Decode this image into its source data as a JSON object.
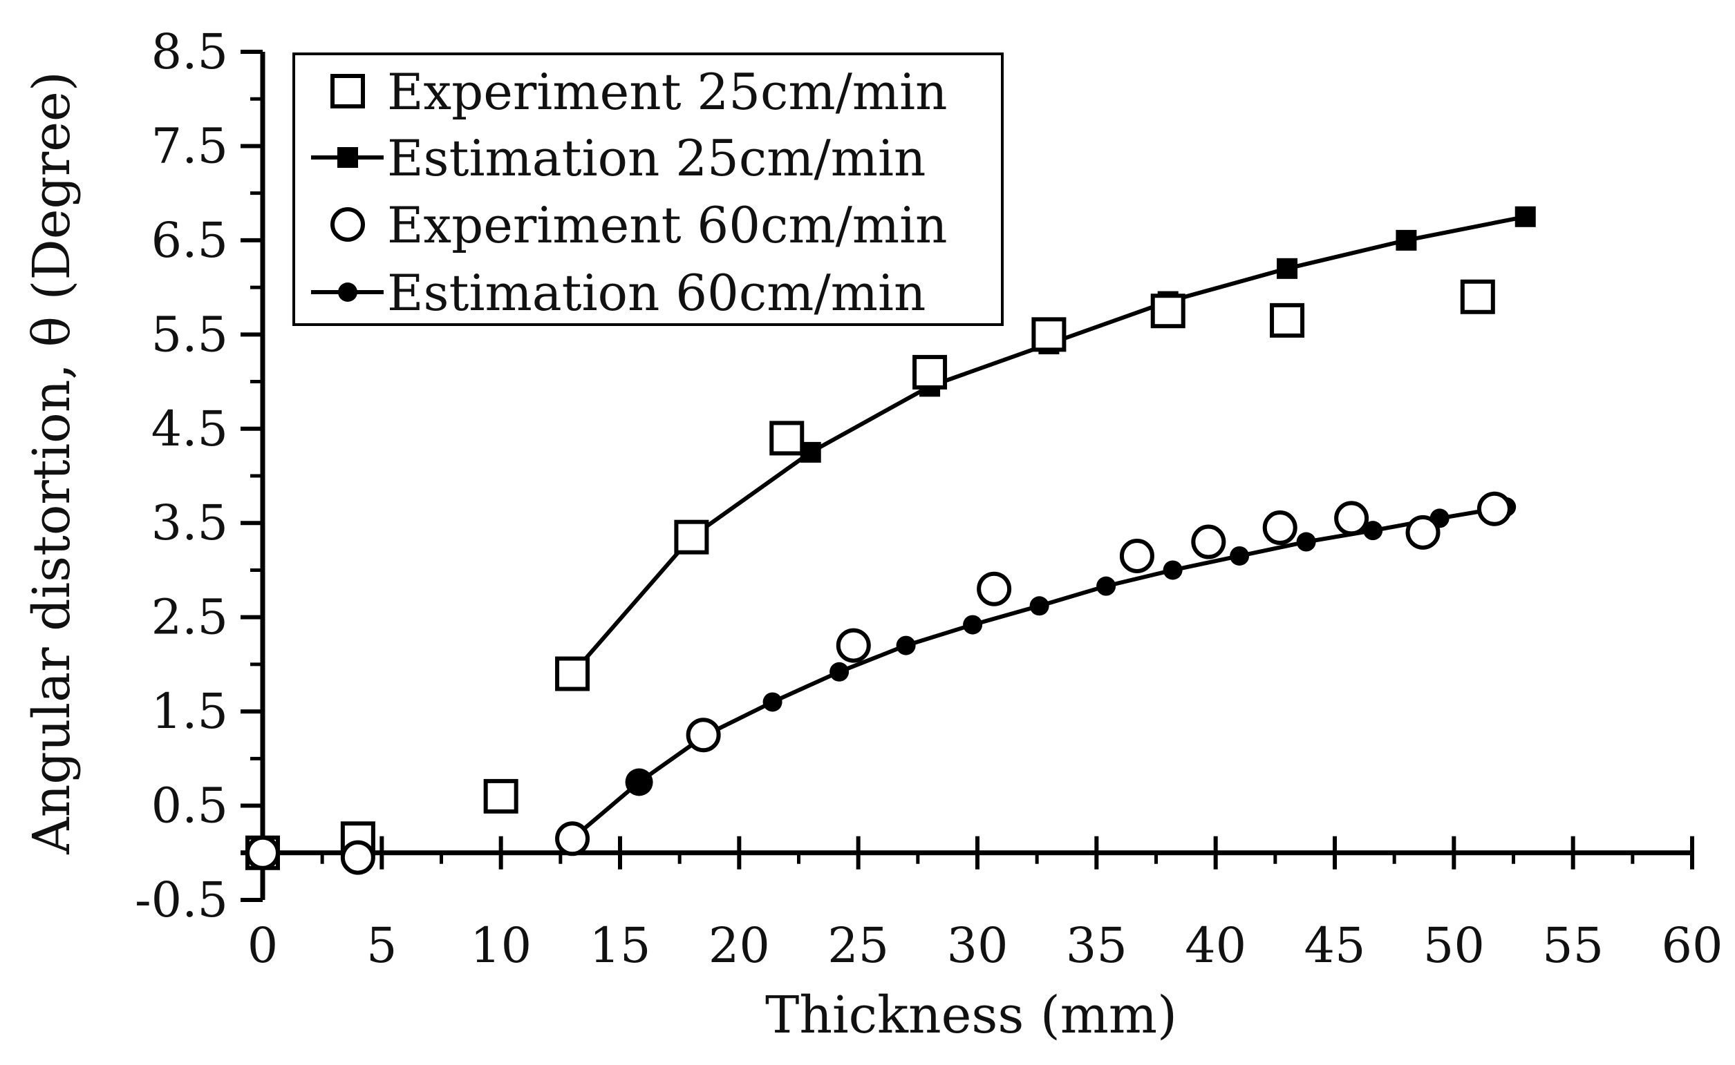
{
  "chart_data": {
    "type": "scatter",
    "title": "",
    "xlabel": "Thickness (mm)",
    "ylabel": "Angular distortion, θ (Degree)",
    "xlim": [
      0,
      60
    ],
    "ylim": [
      -0.5,
      8.5
    ],
    "x_ticks": [
      0,
      5,
      10,
      15,
      20,
      25,
      30,
      35,
      40,
      45,
      50,
      55,
      60
    ],
    "y_ticks": [
      -0.5,
      0.5,
      1.5,
      2.5,
      3.5,
      4.5,
      5.5,
      6.5,
      7.5,
      8.5
    ],
    "x_tick_labels": [
      "0",
      "5",
      "10",
      "15",
      "20",
      "25",
      "30",
      "35",
      "40",
      "45",
      "50",
      "55",
      "60"
    ],
    "y_tick_labels": [
      "-0.5",
      "0.5",
      "1.5",
      "2.5",
      "3.5",
      "4.5",
      "5.5",
      "6.5",
      "7.5",
      "8.5"
    ],
    "grid": false,
    "legend_position": "top-left",
    "series": [
      {
        "name": "Experiment 25cm/min",
        "kind": "scatter",
        "marker": "open-square",
        "x": [
          0,
          4,
          10,
          13,
          18,
          22,
          28,
          33,
          38,
          43,
          51
        ],
        "y": [
          0,
          0.15,
          0.6,
          1.9,
          3.35,
          4.4,
          5.1,
          5.5,
          5.75,
          5.65,
          5.9
        ]
      },
      {
        "name": "Estimation 25cm/min",
        "kind": "line",
        "marker": "filled-square",
        "x": [
          13,
          18,
          23,
          28,
          33,
          38,
          43,
          48,
          53
        ],
        "y": [
          1.9,
          3.35,
          4.25,
          4.95,
          5.4,
          5.85,
          6.2,
          6.5,
          6.75
        ]
      },
      {
        "name": "Experiment 60cm/min",
        "kind": "scatter",
        "marker": "open-circle",
        "x": [
          0,
          4,
          13,
          18.5,
          24.8,
          30.7,
          36.7,
          39.7,
          42.7,
          45.7,
          48.7,
          51.7
        ],
        "y": [
          0,
          -0.05,
          0.15,
          1.25,
          2.2,
          2.8,
          3.15,
          3.3,
          3.45,
          3.55,
          3.4,
          3.65
        ]
      },
      {
        "name": "Estimation 60cm/min",
        "kind": "line",
        "marker": "filled-circle",
        "x": [
          13,
          15.8,
          18.6,
          21.4,
          24.2,
          27,
          29.8,
          32.6,
          35.4,
          38.2,
          41,
          43.8,
          46.6,
          49.4,
          52.2
        ],
        "y": [
          0.15,
          0.75,
          1.25,
          1.6,
          1.92,
          2.2,
          2.42,
          2.62,
          2.83,
          3.0,
          3.15,
          3.3,
          3.42,
          3.55,
          3.67
        ]
      }
    ]
  }
}
